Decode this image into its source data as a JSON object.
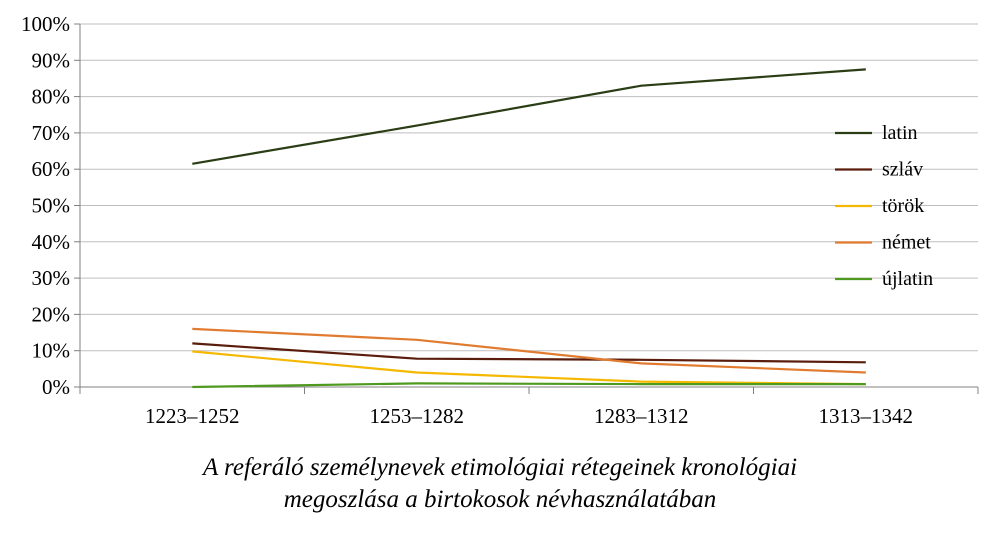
{
  "chart_data": {
    "type": "line",
    "title": "",
    "xlabel": "",
    "ylabel": "",
    "categories": [
      "1223–1252",
      "1253–1282",
      "1283–1312",
      "1313–1342"
    ],
    "y_tick_labels": [
      "0%",
      "10%",
      "20%",
      "30%",
      "40%",
      "50%",
      "60%",
      "70%",
      "80%",
      "90%",
      "100%"
    ],
    "ylim": [
      0,
      100
    ],
    "grid": true,
    "legend_position": "right",
    "series": [
      {
        "name": "latin",
        "color": "#2b3d14",
        "values": [
          61.5,
          72,
          83,
          87.5
        ]
      },
      {
        "name": "szláv",
        "color": "#5a1c0c",
        "values": [
          12,
          7.8,
          7.5,
          6.8
        ]
      },
      {
        "name": "török",
        "color": "#f5b800",
        "values": [
          9.8,
          4,
          1.5,
          0.8
        ]
      },
      {
        "name": "német",
        "color": "#e07b30",
        "values": [
          16,
          13,
          6.5,
          4
        ]
      },
      {
        "name": "újlatin",
        "color": "#4e9a1e",
        "values": [
          0,
          1,
          0.8,
          0.8
        ]
      }
    ]
  },
  "caption": {
    "line1": "A referáló személynevek etimológiai rétegeinek kronológiai",
    "line2": "megoszlása a birtokosok névhasználatában"
  }
}
